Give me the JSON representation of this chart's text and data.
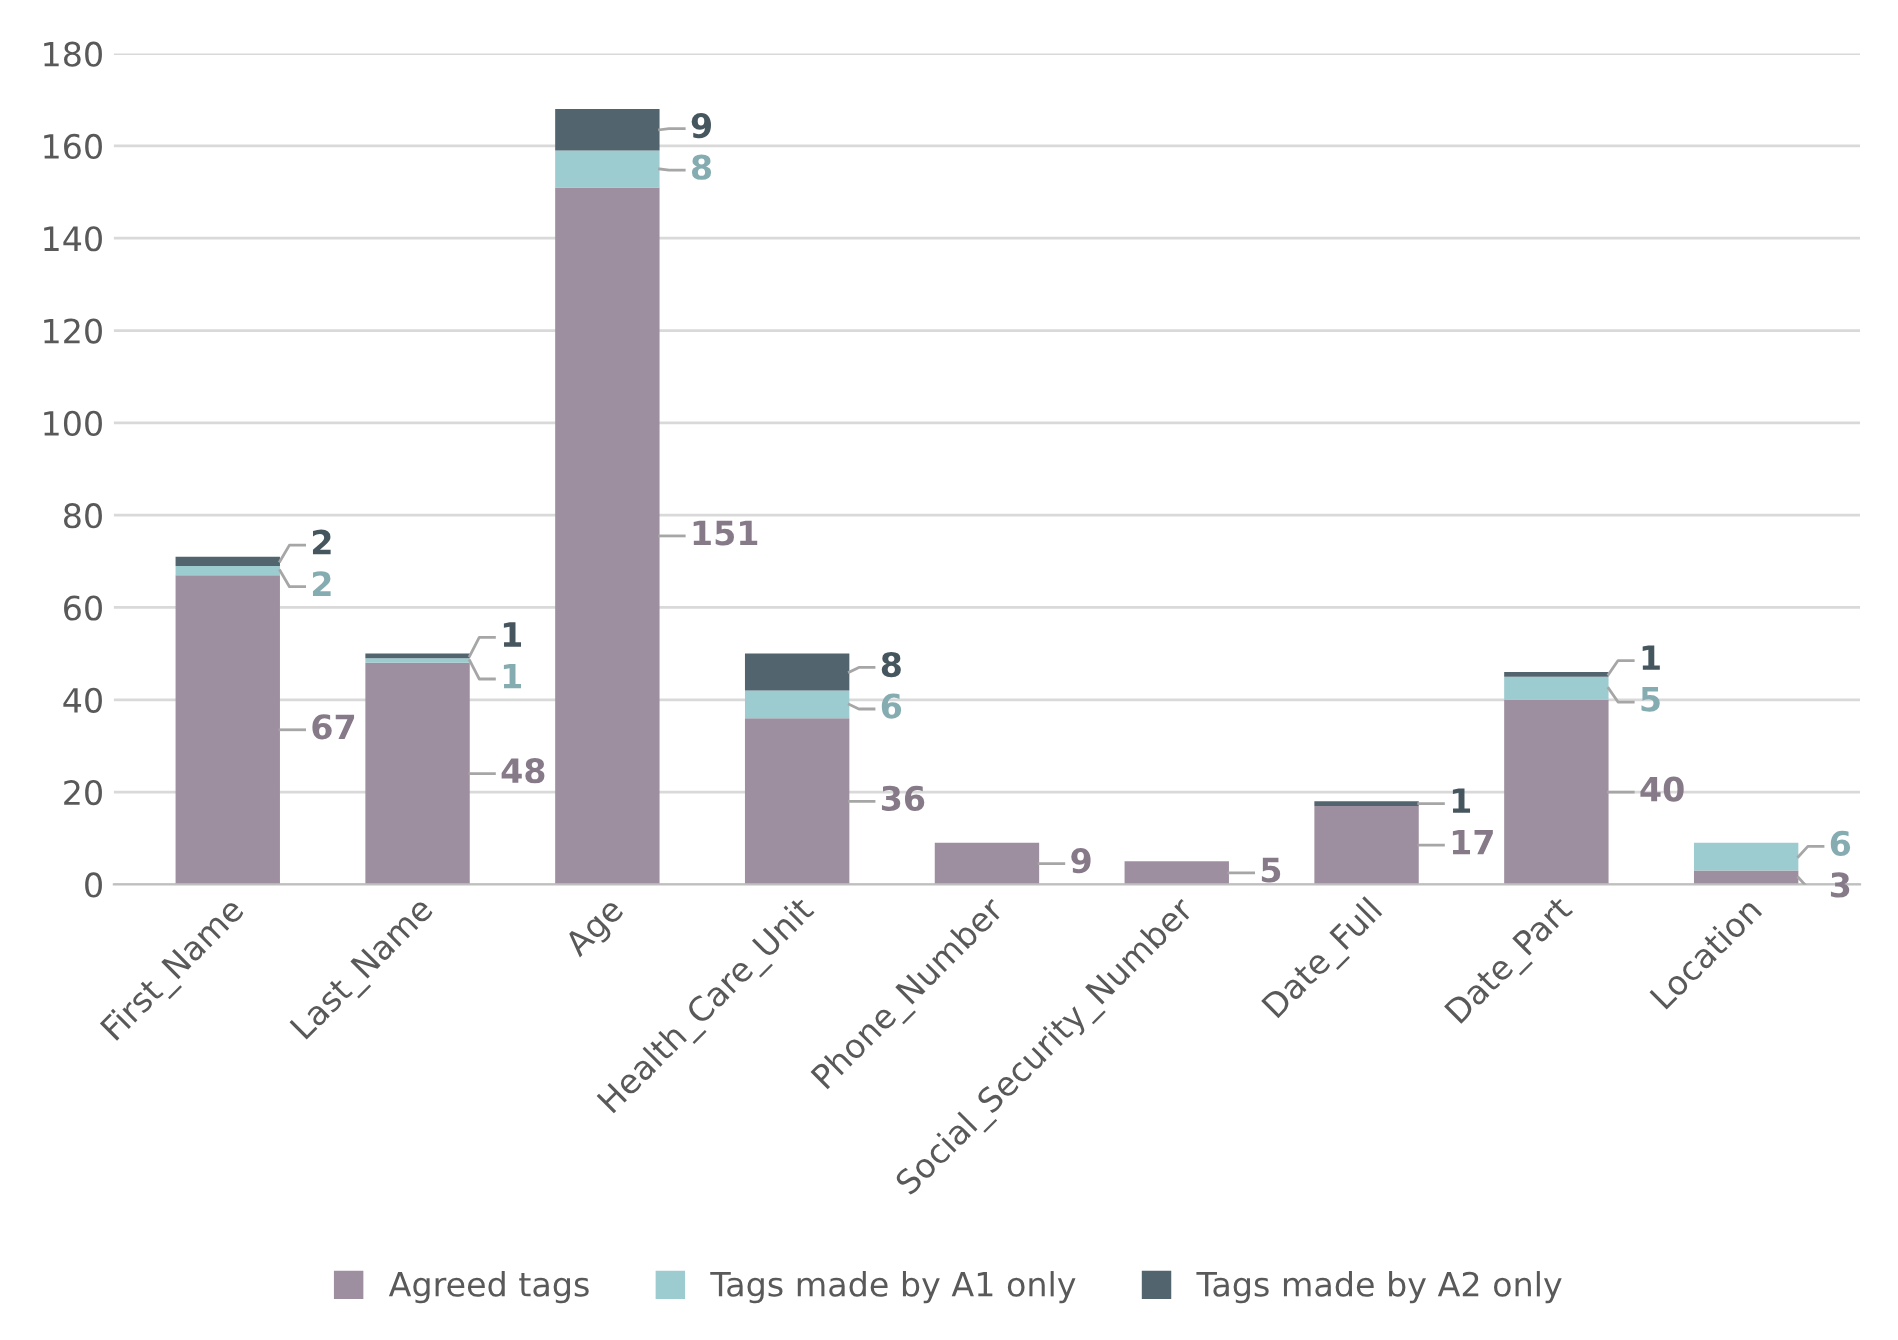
{
  "chart_data": {
    "type": "bar",
    "stacked": true,
    "categories": [
      "First_Name",
      "Last_Name",
      "Age",
      "Health_Care_Unit",
      "Phone_Number",
      "Social_Security_Number",
      "Date_Full",
      "Date_Part",
      "Location"
    ],
    "series": [
      {
        "name": "Agreed tags",
        "color": "#9e8fa0",
        "values": [
          67,
          48,
          151,
          36,
          9,
          5,
          17,
          40,
          3
        ]
      },
      {
        "name": "Tags made by A1 only",
        "color": "#9ccbd0",
        "values": [
          2,
          1,
          8,
          6,
          null,
          null,
          null,
          5,
          6
        ]
      },
      {
        "name": "Tags made by A2 only",
        "color": "#52656f",
        "values": [
          2,
          1,
          9,
          8,
          null,
          null,
          1,
          1,
          null
        ]
      }
    ],
    "ylim": [
      0,
      180
    ],
    "yticks": [
      0,
      20,
      40,
      60,
      80,
      100,
      120,
      140,
      160,
      180
    ],
    "grid": "y",
    "legend": "bottom",
    "data_labels": true
  }
}
